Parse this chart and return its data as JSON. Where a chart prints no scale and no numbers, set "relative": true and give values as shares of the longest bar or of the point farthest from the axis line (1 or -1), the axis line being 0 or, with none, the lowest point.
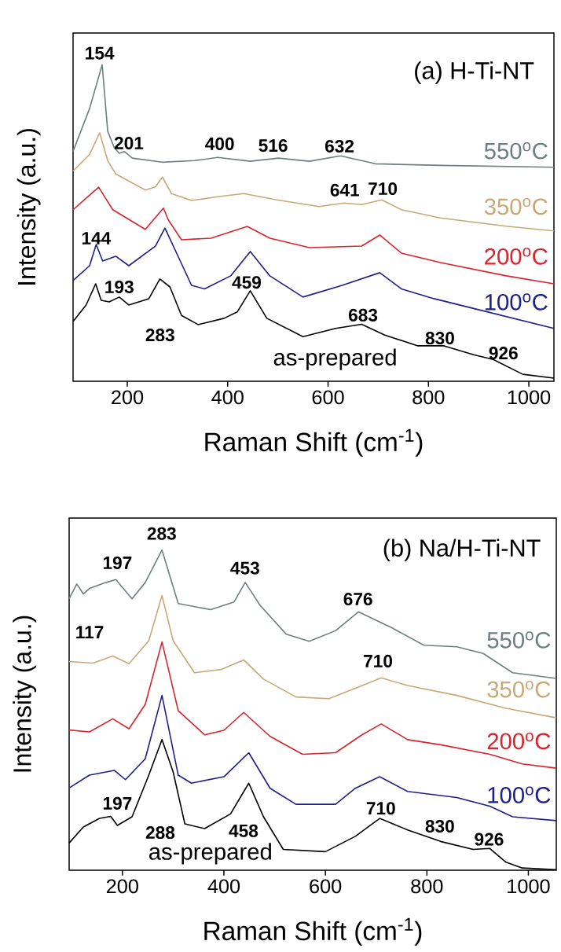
{
  "chart_data": [
    {
      "type": "line",
      "title": "(a) H-Ti-NT",
      "xlabel": "Raman Shift (cm$^{-1}$)",
      "ylabel": "Intensity (a.u.)",
      "relative": true,
      "tick_labels": "x",
      "xlim": [
        92,
        1050
      ],
      "xticks": [
        200,
        400,
        600,
        800,
        1000
      ],
      "series": [
        {
          "name": "550$^{o}$C",
          "color": "#6f7f7f",
          "x": [
            92,
            125,
            150,
            161,
            174,
            184,
            194,
            210,
            269,
            334,
            380,
            445,
            501,
            563,
            625,
            694,
            824,
            1050
          ],
          "values": [
            0.726,
            0.862,
            1.0,
            0.79,
            0.738,
            0.72,
            0.726,
            0.705,
            0.692,
            0.697,
            0.707,
            0.695,
            0.705,
            0.695,
            0.712,
            0.687,
            0.682,
            0.676
          ]
        },
        {
          "name": "350$^{o}$C",
          "color": "#c9a877",
          "x": [
            92,
            125,
            145,
            161,
            177,
            236,
            256,
            270,
            288,
            328,
            380,
            432,
            498,
            582,
            632,
            667,
            707,
            746,
            824,
            955,
            1050
          ],
          "values": [
            0.664,
            0.717,
            0.785,
            0.697,
            0.655,
            0.604,
            0.614,
            0.645,
            0.593,
            0.571,
            0.583,
            0.593,
            0.573,
            0.552,
            0.563,
            0.558,
            0.573,
            0.542,
            0.516,
            0.49,
            0.475
          ]
        },
        {
          "name": "200$^{o}$C",
          "color": "#d9232d",
          "x": [
            92,
            143,
            171,
            236,
            272,
            282,
            308,
            367,
            439,
            484,
            563,
            667,
            703,
            746,
            824,
            955,
            1050
          ],
          "values": [
            0.542,
            0.613,
            0.542,
            0.48,
            0.547,
            0.509,
            0.447,
            0.452,
            0.489,
            0.452,
            0.422,
            0.427,
            0.462,
            0.405,
            0.375,
            0.333,
            0.308
          ]
        },
        {
          "name": "100$^{o}$C",
          "color": "#1f1f8a",
          "x": [
            92,
            125,
            138,
            151,
            177,
            203,
            256,
            275,
            295,
            328,
            354,
            406,
            445,
            484,
            550,
            628,
            703,
            746,
            811,
            890,
            1050
          ],
          "values": [
            0.318,
            0.365,
            0.432,
            0.38,
            0.395,
            0.365,
            0.427,
            0.484,
            0.416,
            0.303,
            0.292,
            0.333,
            0.41,
            0.333,
            0.266,
            0.303,
            0.343,
            0.292,
            0.261,
            0.23,
            0.167
          ]
        },
        {
          "name": "as-prepared",
          "color": "#000000",
          "x": [
            92,
            118,
            137,
            148,
            164,
            184,
            203,
            243,
            265,
            285,
            308,
            341,
            393,
            419,
            445,
            478,
            550,
            615,
            667,
            713,
            779,
            831,
            890,
            929,
            988,
            1050
          ],
          "values": [
            0.189,
            0.241,
            0.308,
            0.256,
            0.251,
            0.266,
            0.241,
            0.261,
            0.323,
            0.298,
            0.208,
            0.179,
            0.199,
            0.219,
            0.286,
            0.199,
            0.141,
            0.167,
            0.18,
            0.146,
            0.112,
            0.112,
            0.084,
            0.069,
            0.022,
            0.01
          ]
        }
      ],
      "annotations": [
        "154",
        "201",
        "400",
        "516",
        "632",
        "641",
        "710",
        "144",
        "193",
        "283",
        "459",
        "683",
        "830",
        "926"
      ]
    },
    {
      "type": "line",
      "title": "(b) Na/H-Ti-NT",
      "xlabel": "Raman Shift (cm$^{-1}$)",
      "ylabel": "Intensity (a.u.)",
      "relative": true,
      "tick_labels": "x",
      "xlim": [
        95,
        1055
      ],
      "xticks": [
        200,
        400,
        600,
        800,
        1000
      ],
      "series": [
        {
          "name": "550$^{o}$C",
          "color": "#6f7f7f",
          "x": [
            95,
            110,
            123,
            135,
            168,
            187,
            219,
            245,
            278,
            310,
            374,
            420,
            442,
            471,
            523,
            568,
            620,
            665,
            730,
            794,
            859,
            911,
            969,
            1055
          ],
          "values": [
            0.848,
            0.894,
            0.863,
            0.88,
            0.899,
            0.908,
            0.848,
            0.899,
            1.0,
            0.833,
            0.814,
            0.838,
            0.899,
            0.828,
            0.737,
            0.715,
            0.748,
            0.807,
            0.758,
            0.703,
            0.698,
            0.677,
            0.617,
            0.599
          ]
        },
        {
          "name": "350$^{o}$C",
          "color": "#c9a877",
          "x": [
            95,
            142,
            181,
            213,
            252,
            278,
            300,
            342,
            394,
            439,
            478,
            542,
            607,
            665,
            710,
            762,
            859,
            956,
            1055
          ],
          "values": [
            0.652,
            0.647,
            0.669,
            0.645,
            0.717,
            0.858,
            0.717,
            0.617,
            0.627,
            0.657,
            0.597,
            0.541,
            0.536,
            0.572,
            0.601,
            0.577,
            0.546,
            0.506,
            0.476
          ]
        },
        {
          "name": "200$^{o}$C",
          "color": "#d9232d",
          "x": [
            95,
            135,
            181,
            213,
            245,
            278,
            310,
            362,
            400,
            439,
            491,
            555,
            620,
            672,
            710,
            762,
            827,
            924,
            988,
            1055
          ],
          "values": [
            0.438,
            0.432,
            0.473,
            0.442,
            0.518,
            0.713,
            0.498,
            0.423,
            0.437,
            0.493,
            0.418,
            0.362,
            0.367,
            0.423,
            0.457,
            0.408,
            0.392,
            0.362,
            0.332,
            0.319
          ]
        },
        {
          "name": "100$^{o}$C",
          "color": "#1f1f8a",
          "x": [
            95,
            135,
            184,
            206,
            245,
            278,
            310,
            336,
            400,
            449,
            491,
            542,
            620,
            659,
            707,
            762,
            859,
            924,
            969,
            1055
          ],
          "values": [
            0.257,
            0.297,
            0.312,
            0.283,
            0.348,
            0.546,
            0.297,
            0.272,
            0.292,
            0.367,
            0.256,
            0.206,
            0.206,
            0.256,
            0.292,
            0.246,
            0.227,
            0.2,
            0.167,
            0.155
          ]
        },
        {
          "name": "as-prepared",
          "color": "#000000",
          "x": [
            95,
            123,
            155,
            177,
            190,
            219,
            252,
            278,
            300,
            323,
            362,
            413,
            449,
            478,
            517,
            600,
            659,
            707,
            762,
            827,
            891,
            924,
            956,
            988,
            1055
          ],
          "values": [
            0.085,
            0.135,
            0.162,
            0.168,
            0.14,
            0.167,
            0.297,
            0.408,
            0.307,
            0.145,
            0.13,
            0.176,
            0.272,
            0.167,
            0.065,
            0.058,
            0.106,
            0.162,
            0.126,
            0.09,
            0.065,
            0.068,
            0.025,
            0.007,
            0.002
          ]
        }
      ],
      "annotations": [
        "283",
        "197",
        "117",
        "453",
        "676",
        "710",
        "197",
        "288",
        "458",
        "710",
        "830",
        "926"
      ]
    }
  ]
}
